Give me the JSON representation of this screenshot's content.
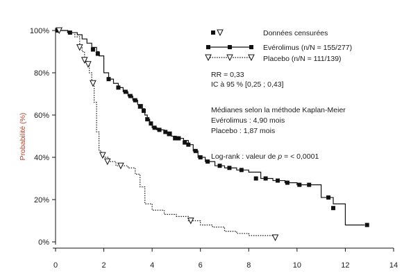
{
  "chart_data": {
    "type": "line",
    "title": "",
    "xlabel": "",
    "ylabel": "Probabilité (%)",
    "xlim": [
      0,
      14
    ],
    "ylim": [
      0,
      100
    ],
    "x_ticks": [
      "0",
      "2",
      "4",
      "6",
      "8",
      "10",
      "12",
      "14"
    ],
    "y_ticks": [
      "0%",
      "20%",
      "40%",
      "60%",
      "80%",
      "100%"
    ],
    "grid": false,
    "legend_position": "top-right",
    "legend": {
      "title": "Données censurées",
      "entries": [
        "Evérolimus (n/N = 155/277)",
        "Placebo (n/N = 111/139)"
      ]
    },
    "annotations": {
      "rr": "RR = 0,33",
      "ic": "IC à 95 % [0,25 ; 0,43]",
      "median_title": "Médianes selon la méthode Kaplan-Meier",
      "median_evero": "Evérolimus : 4,90 mois",
      "median_placebo": "Placebo : 1,87 mois",
      "logrank_prefix": "Log-rank : valeur de ",
      "logrank_p": "p",
      "logrank_suffix": " = < 0,0001"
    },
    "series": [
      {
        "name": "Evérolimus (n/N = 155/277)",
        "style": "solid",
        "marker": "filled-square",
        "color": "#111111",
        "x": [
          0,
          0.5,
          0.9,
          1.1,
          1.3,
          1.5,
          1.7,
          1.8,
          2.0,
          2.2,
          2.4,
          2.6,
          2.8,
          3.0,
          3.2,
          3.4,
          3.6,
          3.7,
          3.8,
          3.9,
          4.0,
          4.2,
          4.5,
          4.8,
          5.0,
          5.3,
          5.5,
          5.7,
          5.9,
          6.2,
          6.6,
          7.0,
          7.5,
          8.0,
          8.5,
          9.0,
          9.5,
          10.0,
          10.5,
          11.0,
          11.5,
          12.0,
          12.8
        ],
        "y": [
          100,
          99,
          98,
          96,
          94,
          92,
          90,
          88,
          80,
          77,
          75,
          73,
          71,
          69,
          67,
          65,
          63,
          60,
          58,
          56,
          54,
          53,
          52,
          50,
          49,
          48,
          46,
          43,
          40,
          38,
          36,
          35,
          34,
          33,
          30,
          29,
          28,
          27,
          27,
          21,
          18,
          8,
          8
        ]
      },
      {
        "name": "Placebo (n/N = 111/139)",
        "style": "dotted",
        "marker": "open-triangle-down",
        "color": "#111111",
        "x": [
          0,
          0.5,
          0.8,
          1.0,
          1.1,
          1.2,
          1.3,
          1.4,
          1.5,
          1.6,
          1.7,
          1.8,
          1.9,
          2.0,
          2.2,
          2.5,
          3.0,
          3.3,
          3.5,
          3.7,
          4.0,
          4.5,
          5.0,
          5.5,
          6.0,
          6.5,
          7.0,
          7.5,
          8.0,
          8.5,
          9.1
        ],
        "y": [
          100,
          99,
          97,
          92,
          90,
          86,
          84,
          80,
          75,
          66,
          52,
          43,
          41,
          40,
          38,
          36,
          35,
          32,
          26,
          18,
          15,
          13,
          12,
          10,
          8,
          7,
          5,
          4,
          3,
          3,
          2
        ]
      }
    ],
    "censor_marks": {
      "everolimus": [
        [
          0.1,
          100
        ],
        [
          0.6,
          99
        ],
        [
          1.55,
          91
        ],
        [
          1.75,
          89
        ],
        [
          2.2,
          77
        ],
        [
          2.6,
          73
        ],
        [
          2.9,
          71
        ],
        [
          3.1,
          69
        ],
        [
          3.3,
          67
        ],
        [
          3.5,
          64
        ],
        [
          3.65,
          62
        ],
        [
          3.8,
          58
        ],
        [
          3.95,
          56
        ],
        [
          4.1,
          54
        ],
        [
          4.3,
          53
        ],
        [
          4.55,
          52
        ],
        [
          4.7,
          51
        ],
        [
          4.95,
          49
        ],
        [
          5.1,
          49
        ],
        [
          5.35,
          47
        ],
        [
          5.5,
          46
        ],
        [
          5.8,
          43
        ],
        [
          6.0,
          40
        ],
        [
          6.3,
          38
        ],
        [
          6.8,
          36
        ],
        [
          7.2,
          35
        ],
        [
          7.7,
          34
        ],
        [
          8.3,
          30
        ],
        [
          8.7,
          30
        ],
        [
          9.2,
          29
        ],
        [
          9.6,
          28
        ],
        [
          10.1,
          27
        ],
        [
          10.5,
          27
        ],
        [
          11.3,
          21
        ],
        [
          11.5,
          16
        ],
        [
          12.9,
          8
        ]
      ],
      "placebo": [
        [
          0.15,
          100
        ],
        [
          1.0,
          92
        ],
        [
          1.2,
          86
        ],
        [
          1.35,
          84
        ],
        [
          1.55,
          75
        ],
        [
          1.95,
          41
        ],
        [
          2.15,
          38
        ],
        [
          2.7,
          36
        ],
        [
          5.6,
          10
        ],
        [
          9.1,
          2
        ]
      ]
    }
  }
}
